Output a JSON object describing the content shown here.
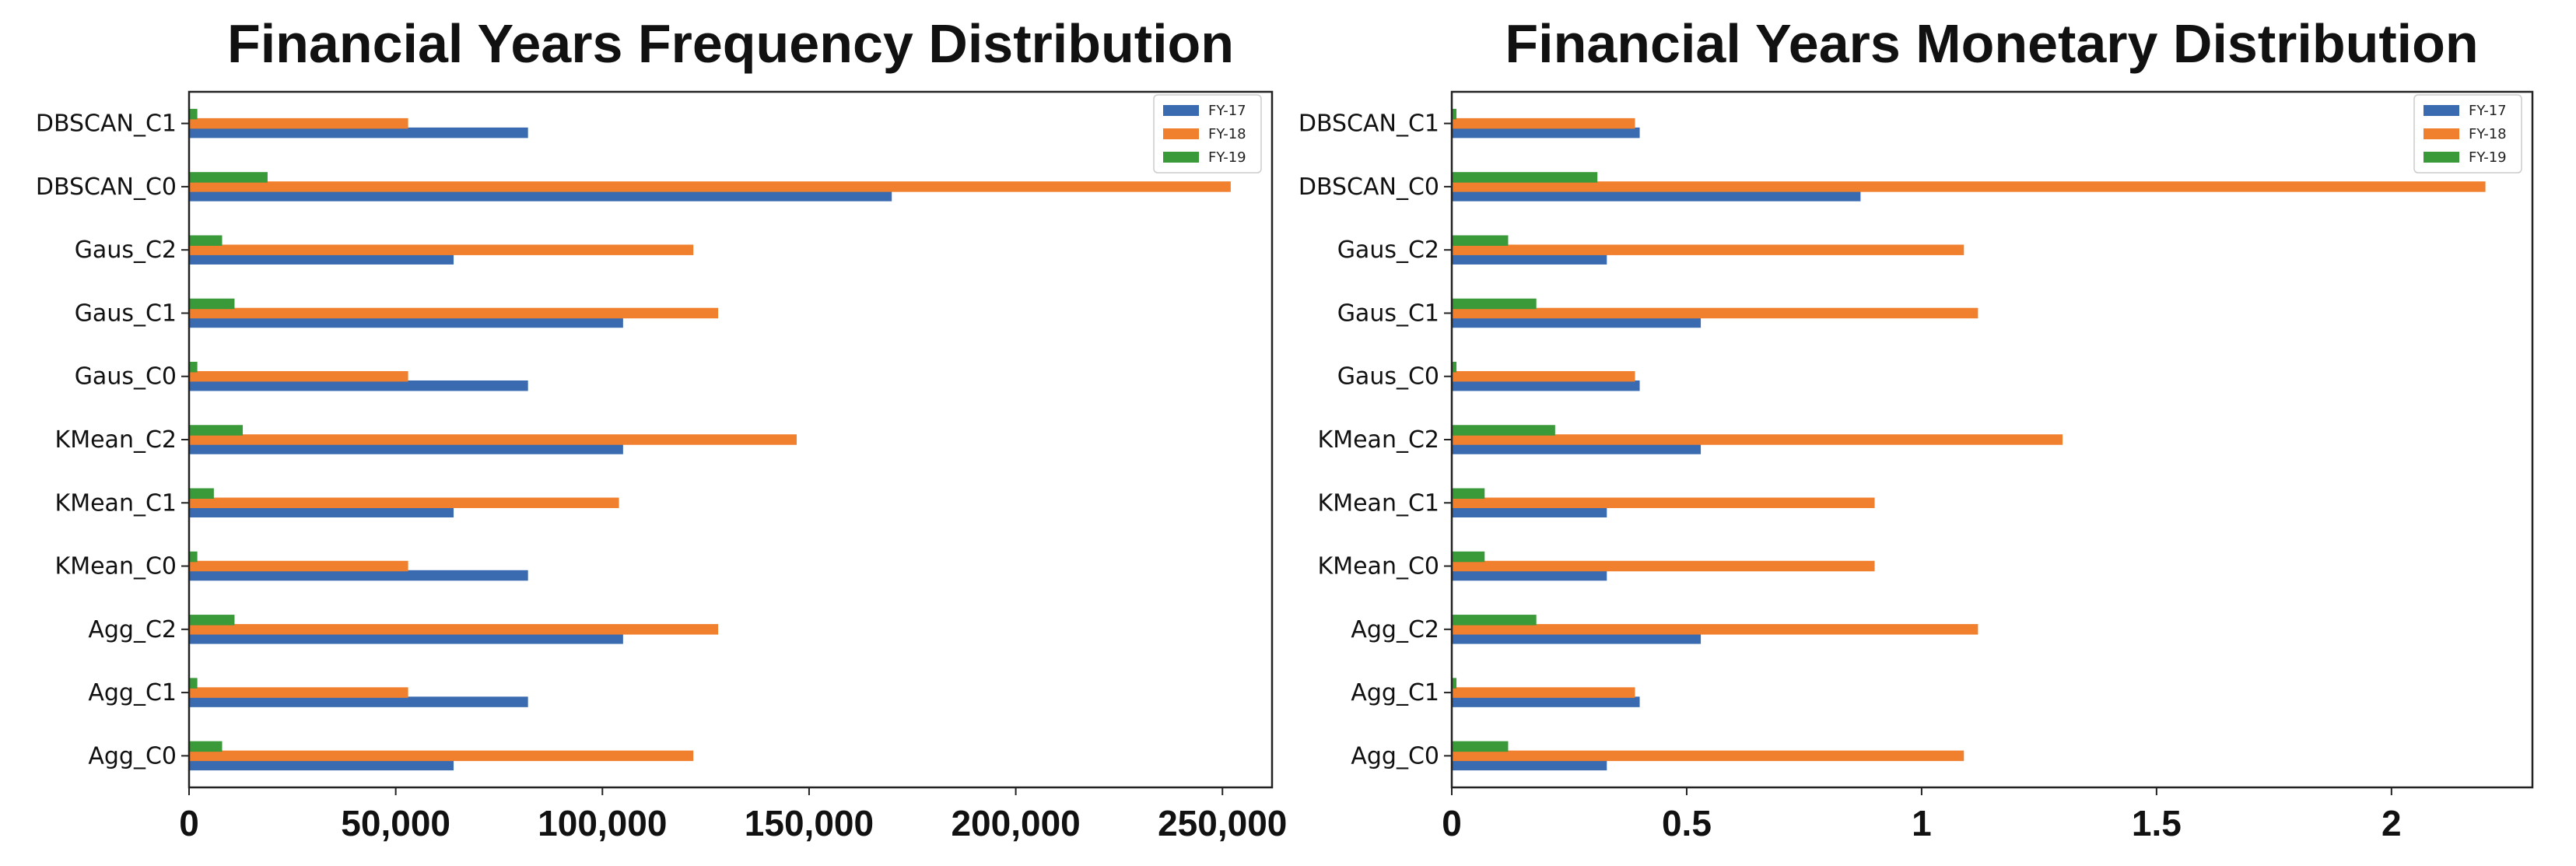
{
  "chart_data": [
    {
      "type": "bar",
      "orientation": "horizontal",
      "title": "Financial Years Frequency Distribution",
      "categories": [
        "DBSCAN_C1",
        "DBSCAN_C0",
        "Gaus_C2",
        "Gaus_C1",
        "Gaus_C0",
        "KMean_C2",
        "KMean_C1",
        "KMean_C0",
        "Agg_C2",
        "Agg_C1",
        "Agg_C0"
      ],
      "series": [
        {
          "name": "FY-17",
          "color": "#3a6bb0",
          "values": [
            82000,
            170000,
            64000,
            105000,
            82000,
            105000,
            64000,
            82000,
            105000,
            82000,
            64000
          ]
        },
        {
          "name": "FY-18",
          "color": "#f07f2e",
          "values": [
            53000,
            252000,
            122000,
            128000,
            53000,
            147000,
            104000,
            53000,
            128000,
            53000,
            122000
          ]
        },
        {
          "name": "FY-19",
          "color": "#3a9a3a",
          "values": [
            2000,
            19000,
            8000,
            11000,
            2000,
            13000,
            6000,
            2000,
            11000,
            2000,
            8000
          ]
        }
      ],
      "xlim": [
        0,
        262000
      ],
      "xticks": [
        0,
        50000,
        100000,
        150000,
        200000,
        250000
      ],
      "xtick_labels": [
        "0",
        "50,000",
        "100,000",
        "150,000",
        "200,000",
        "250,000"
      ],
      "legend": "top-right",
      "xlabel": "",
      "ylabel": ""
    },
    {
      "type": "bar",
      "orientation": "horizontal",
      "title": "Financial Years Monetary Distribution",
      "categories": [
        "DBSCAN_C1",
        "DBSCAN_C0",
        "Gaus_C2",
        "Gaus_C1",
        "Gaus_C0",
        "KMean_C2",
        "KMean_C1",
        "KMean_C0",
        "Agg_C2",
        "Agg_C1",
        "Agg_C0"
      ],
      "series": [
        {
          "name": "FY-17",
          "color": "#3a6bb0",
          "values": [
            0.4,
            0.87,
            0.33,
            0.53,
            0.4,
            0.53,
            0.33,
            0.33,
            0.53,
            0.4,
            0.33
          ]
        },
        {
          "name": "FY-18",
          "color": "#f07f2e",
          "values": [
            0.39,
            2.2,
            1.09,
            1.12,
            0.39,
            1.3,
            0.9,
            0.9,
            1.12,
            0.39,
            1.09
          ]
        },
        {
          "name": "FY-19",
          "color": "#3a9a3a",
          "values": [
            0.01,
            0.31,
            0.12,
            0.18,
            0.01,
            0.22,
            0.07,
            0.07,
            0.18,
            0.01,
            0.12
          ]
        }
      ],
      "xlim": [
        0,
        2.3
      ],
      "xticks": [
        0,
        0.5,
        1,
        1.5,
        2
      ],
      "xtick_labels": [
        "0",
        "0.5",
        "1",
        "1.5",
        "2"
      ],
      "legend": "top-right",
      "xlabel": "",
      "ylabel": ""
    }
  ]
}
